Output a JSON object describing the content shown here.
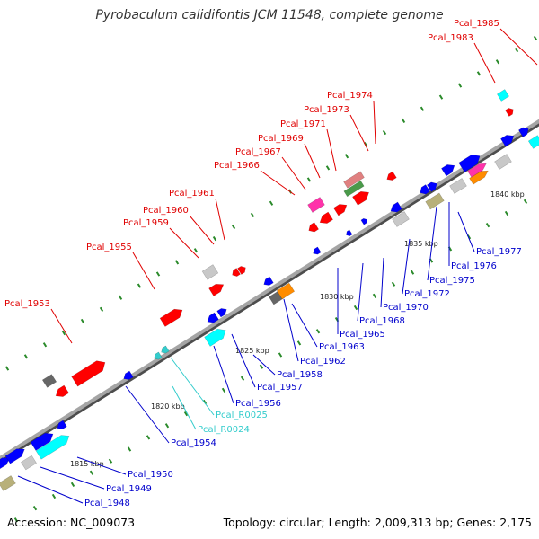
{
  "title": "Pyrobaculum calidifontis JCM 11548, complete genome",
  "footer": {
    "accession": "Accession: NC_009073",
    "summary": "Topology: circular; Length: 2,009,313 bp; Genes: 2,175"
  },
  "colors": {
    "backbone": "#8c8c8c",
    "label_top": "#e00000",
    "label_bottom": "#0000cc",
    "label_rna": "#33cccc",
    "tick": "#2a8a2a"
  },
  "scale_labels": [
    "1815 kbp",
    "1820 kbp",
    "1825 kbp",
    "1830 kbp",
    "1835 kbp",
    "1840 kbp"
  ],
  "top_labels": [
    "Pcal_1953",
    "Pcal_1955",
    "Pcal_1959",
    "Pcal_1960",
    "Pcal_1961",
    "Pcal_1966",
    "Pcal_1967",
    "Pcal_1969",
    "Pcal_1971",
    "Pcal_1973",
    "Pcal_1974",
    "Pcal_1983",
    "Pcal_1985"
  ],
  "bottom_labels": [
    "Pcal_1948",
    "Pcal_1949",
    "Pcal_1950",
    "Pcal_1954",
    "Pcal_R0024",
    "Pcal_R0025",
    "Pcal_1956",
    "Pcal_1957",
    "Pcal_1958",
    "Pcal_1962",
    "Pcal_1963",
    "Pcal_1965",
    "Pcal_1968",
    "Pcal_1970",
    "Pcal_1972",
    "Pcal_1975",
    "Pcal_1976",
    "Pcal_1977"
  ]
}
